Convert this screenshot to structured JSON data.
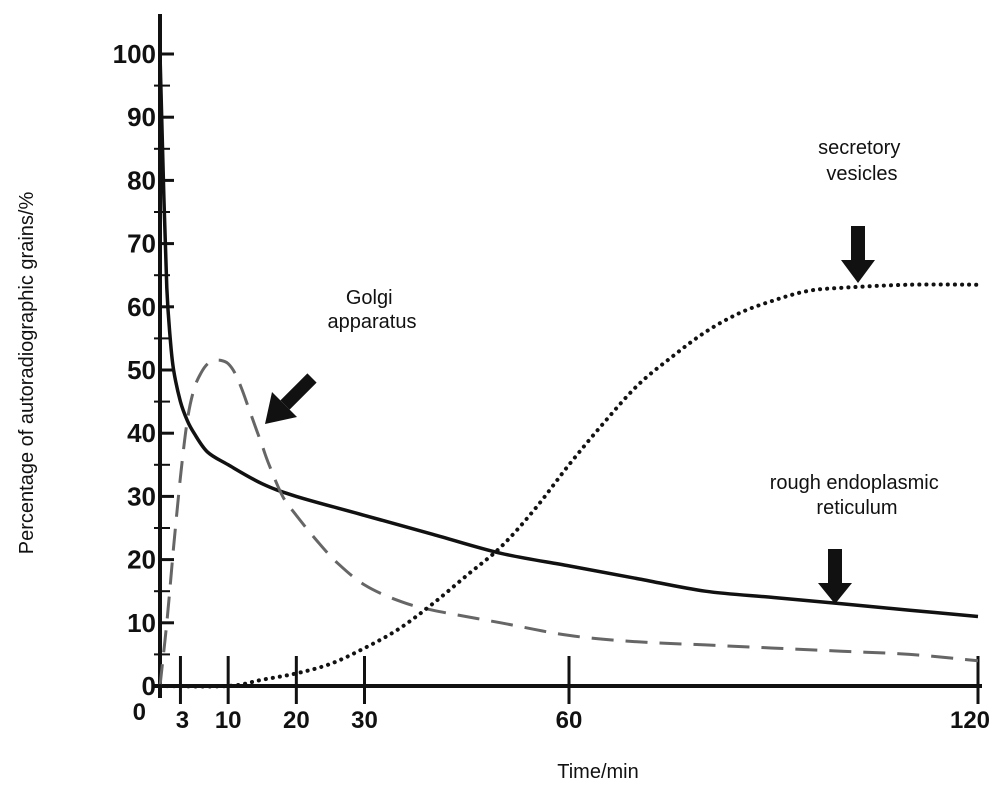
{
  "chart_data": {
    "type": "line",
    "xlabel": "Time/min",
    "ylabel": "Percentage of autoradiographic grains/%",
    "xlim": [
      0,
      120
    ],
    "ylim": [
      0,
      100
    ],
    "x_ticks": [
      0,
      3,
      10,
      20,
      30,
      60,
      120
    ],
    "y_ticks": [
      0,
      10,
      20,
      30,
      40,
      50,
      60,
      70,
      80,
      90,
      100
    ],
    "grid": false,
    "legend": "none",
    "series": [
      {
        "name": "rough endoplasmic reticulum",
        "style": "solid",
        "color": "#111111",
        "x": [
          0,
          0.5,
          1,
          1.5,
          2,
          3,
          4,
          5,
          7,
          10,
          15,
          20,
          30,
          40,
          50,
          60,
          70,
          80,
          90,
          100,
          110,
          120
        ],
        "y": [
          100,
          80,
          63,
          55,
          50,
          45,
          42,
          40,
          37,
          35,
          32,
          30,
          27,
          24,
          21,
          19,
          17,
          15,
          14,
          13,
          12,
          11
        ]
      },
      {
        "name": "Golgi apparatus",
        "style": "dashed",
        "color": "#666666",
        "x": [
          0,
          1,
          2,
          3,
          4,
          5,
          6,
          7,
          8,
          9,
          10,
          11,
          12,
          13,
          14,
          15,
          16,
          18,
          20,
          23,
          26,
          30,
          35,
          40,
          50,
          60,
          70,
          80,
          90,
          100,
          110,
          120
        ],
        "y": [
          0,
          10,
          22,
          33,
          42,
          47,
          49.5,
          51,
          51.5,
          51.5,
          51,
          49.5,
          47,
          44,
          41,
          38,
          35,
          30,
          27,
          23,
          19.5,
          16,
          13.5,
          12,
          10,
          8,
          7,
          6.5,
          6,
          5.5,
          5,
          4
        ]
      },
      {
        "name": "secretory vesicles",
        "style": "dotted",
        "color": "#111111",
        "x": [
          0,
          10,
          15,
          20,
          25,
          30,
          35,
          40,
          45,
          50,
          55,
          60,
          65,
          70,
          75,
          80,
          85,
          90,
          95,
          100,
          110,
          120
        ],
        "y": [
          0,
          0,
          1,
          2,
          3.5,
          6,
          9,
          13,
          17.5,
          22,
          28,
          35,
          41.5,
          47.5,
          52,
          56,
          59,
          61,
          62.5,
          63,
          63.5,
          63.5
        ]
      }
    ],
    "annotations": [
      {
        "lines": [
          "Golgi",
          "apparatus"
        ],
        "arrow": "down-left"
      },
      {
        "lines": [
          "secretory",
          "vesicles"
        ],
        "arrow": "down"
      },
      {
        "lines": [
          "rough endoplasmic",
          "reticulum"
        ],
        "arrow": "down"
      }
    ]
  }
}
